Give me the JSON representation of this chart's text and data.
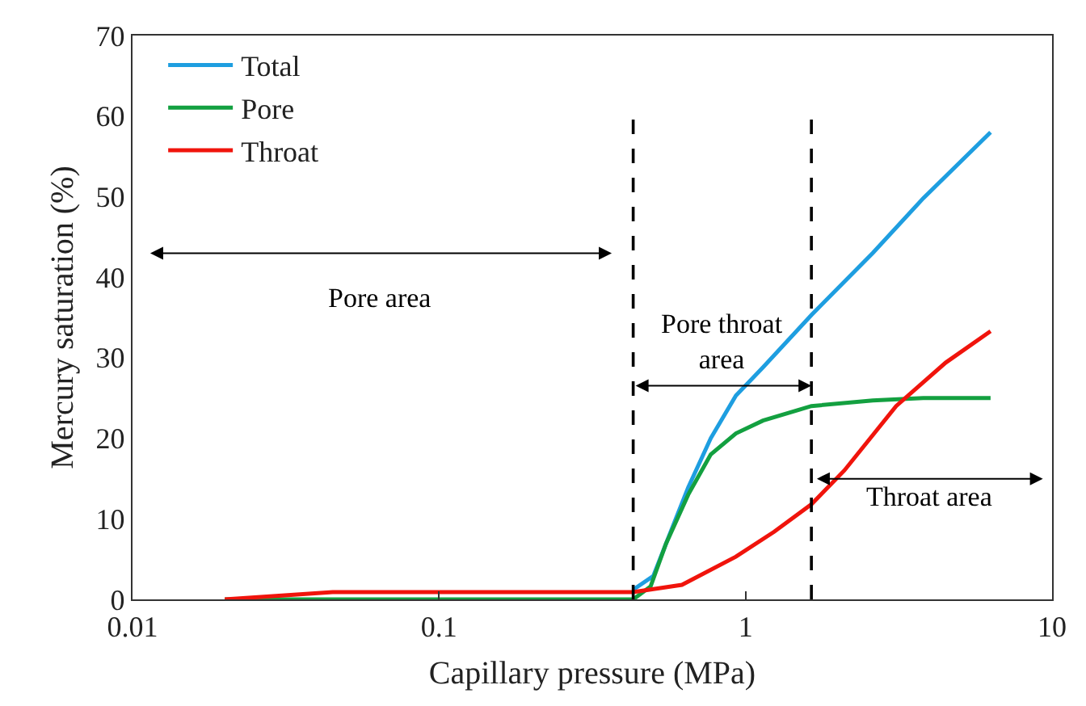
{
  "chart_data": {
    "type": "line",
    "xlabel": "Capillary pressure (MPa)",
    "ylabel": "Mercury saturation (%)",
    "log": "x",
    "xlim": [
      0.01,
      10
    ],
    "xticks": [
      0.01,
      0.1,
      1,
      10
    ],
    "ylim": [
      0,
      70
    ],
    "yticks": [
      0,
      10,
      20,
      30,
      40,
      50,
      60,
      70
    ],
    "grid": false,
    "legend": "top left",
    "marker": "none",
    "line_style": "solid",
    "series": [
      {
        "name": "Total",
        "color": "#1e9ee0",
        "x": [
          0.43,
          0.5,
          0.57,
          0.65,
          0.77,
          0.93,
          1.14,
          1.64,
          2.6,
          3.8,
          6.3
        ],
        "values": [
          1.2,
          2.9,
          8.4,
          13.9,
          20,
          25.3,
          28.8,
          35.3,
          43,
          49.8,
          58
        ]
      },
      {
        "name": "Pore",
        "color": "#13a040",
        "x": [
          0.02,
          0.43,
          0.49,
          0.55,
          0.65,
          0.77,
          0.93,
          1.14,
          1.64,
          2.6,
          3.8,
          6.3
        ],
        "values": [
          0,
          0,
          1.6,
          6.9,
          13,
          18,
          20.6,
          22.2,
          24,
          24.7,
          25,
          25
        ]
      },
      {
        "name": "Throat",
        "color": "#f0140c",
        "x": [
          0.02,
          0.045,
          0.43,
          0.62,
          0.93,
          1.24,
          1.64,
          2.1,
          3.1,
          4.5,
          6.3
        ],
        "values": [
          0,
          0.9,
          0.9,
          1.8,
          5.3,
          8.4,
          11.8,
          16,
          24,
          29.4,
          33.3
        ]
      }
    ],
    "ref_lines": [
      {
        "axis": "x",
        "value": 0.43,
        "color": "#000000",
        "line_style": "dashed"
      },
      {
        "axis": "x",
        "value": 1.64,
        "color": "#000000",
        "line_style": "dashed"
      }
    ],
    "annotations": [
      "Pore area",
      "Pore throat area",
      "Throat area"
    ]
  }
}
